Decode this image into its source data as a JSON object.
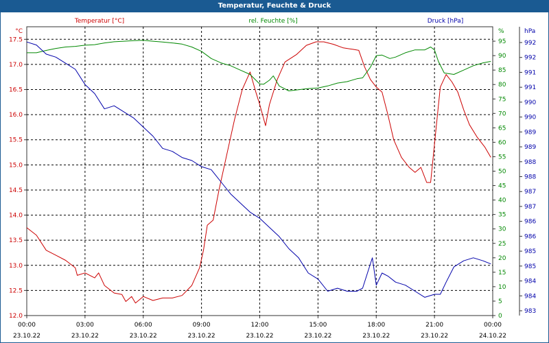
{
  "chart_data": {
    "type": "line",
    "title": "Temperatur, Feuchte & Druck",
    "x_ticks": [
      {
        "time": "00:00",
        "date": "23.10.22"
      },
      {
        "time": "03:00",
        "date": "23.10.22"
      },
      {
        "time": "06:00",
        "date": "23.10.22"
      },
      {
        "time": "09:00",
        "date": "23.10.22"
      },
      {
        "time": "12:00",
        "date": "23.10.22"
      },
      {
        "time": "15:00",
        "date": "23.10.22"
      },
      {
        "time": "18:00",
        "date": "23.10.22"
      },
      {
        "time": "21:00",
        "date": "23.10.22"
      },
      {
        "time": "00:00",
        "date": "24.10.22"
      }
    ],
    "x_range_hours": [
      0,
      24
    ],
    "axes": {
      "temperature": {
        "label": "Temperatur [°C]",
        "unit": "°C",
        "color": "#cc0000",
        "range": [
          12.0,
          17.75
        ],
        "ticks": [
          "12.0",
          "12.5",
          "13.0",
          "13.5",
          "14.0",
          "14.5",
          "15.0",
          "15.5",
          "16.0",
          "16.5",
          "17.0",
          "17.5"
        ]
      },
      "humidity": {
        "label": "rel. Feuchte [%]",
        "unit": "%",
        "color": "#008800",
        "range": [
          0,
          100
        ],
        "ticks": [
          "0",
          "5",
          "10",
          "15",
          "20",
          "25",
          "30",
          "35",
          "40",
          "45",
          "50",
          "55",
          "60",
          "65",
          "70",
          "75",
          "80",
          "85",
          "90",
          "95"
        ]
      },
      "pressure": {
        "label": "Druck [hPa]",
        "unit": "hPa",
        "color": "#0000aa",
        "range": [
          983.0,
          992.5
        ],
        "ticks": [
          "983",
          "984",
          "984",
          "985",
          "985",
          "986",
          "986",
          "987",
          "987",
          "988",
          "988",
          "989",
          "989",
          "990",
          "990",
          "991",
          "991",
          "992",
          "992"
        ]
      }
    },
    "series": [
      {
        "name": "Temperatur",
        "axis": "temperature",
        "color": "#cc0000",
        "points": [
          [
            0,
            13.75
          ],
          [
            0.5,
            13.6
          ],
          [
            1,
            13.3
          ],
          [
            1.5,
            13.2
          ],
          [
            2,
            13.1
          ],
          [
            2.5,
            12.95
          ],
          [
            2.6,
            12.8
          ],
          [
            3,
            12.85
          ],
          [
            3.5,
            12.75
          ],
          [
            3.7,
            12.85
          ],
          [
            4,
            12.6
          ],
          [
            4.5,
            12.45
          ],
          [
            4.9,
            12.42
          ],
          [
            5.1,
            12.28
          ],
          [
            5.4,
            12.38
          ],
          [
            5.6,
            12.25
          ],
          [
            6,
            12.38
          ],
          [
            6.5,
            12.3
          ],
          [
            7,
            12.35
          ],
          [
            7.5,
            12.35
          ],
          [
            8,
            12.4
          ],
          [
            8.5,
            12.6
          ],
          [
            8.9,
            12.95
          ],
          [
            9.1,
            13.3
          ],
          [
            9.3,
            13.8
          ],
          [
            9.6,
            13.9
          ],
          [
            9.9,
            14.5
          ],
          [
            10.3,
            15.2
          ],
          [
            10.7,
            15.9
          ],
          [
            11.1,
            16.5
          ],
          [
            11.5,
            16.85
          ],
          [
            11.8,
            16.45
          ],
          [
            12,
            16.2
          ],
          [
            12.3,
            15.78
          ],
          [
            12.5,
            16.2
          ],
          [
            12.9,
            16.7
          ],
          [
            13.3,
            17.05
          ],
          [
            13.9,
            17.2
          ],
          [
            14.4,
            17.38
          ],
          [
            14.9,
            17.45
          ],
          [
            15.3,
            17.45
          ],
          [
            15.8,
            17.4
          ],
          [
            16.3,
            17.33
          ],
          [
            16.8,
            17.3
          ],
          [
            17.1,
            17.28
          ],
          [
            17.4,
            16.95
          ],
          [
            17.7,
            16.7
          ],
          [
            18,
            16.55
          ],
          [
            18.3,
            16.45
          ],
          [
            18.6,
            16.0
          ],
          [
            18.9,
            15.5
          ],
          [
            19.3,
            15.15
          ],
          [
            19.7,
            14.95
          ],
          [
            20,
            14.85
          ],
          [
            20.3,
            14.95
          ],
          [
            20.6,
            14.65
          ],
          [
            20.8,
            14.65
          ],
          [
            21.1,
            15.8
          ],
          [
            21.3,
            16.55
          ],
          [
            21.6,
            16.8
          ],
          [
            21.9,
            16.65
          ],
          [
            22.2,
            16.45
          ],
          [
            22.5,
            16.1
          ],
          [
            22.8,
            15.8
          ],
          [
            23.2,
            15.55
          ],
          [
            23.6,
            15.35
          ],
          [
            23.9,
            15.15
          ]
        ]
      },
      {
        "name": "rel. Feuchte",
        "axis": "humidity",
        "color": "#008800",
        "points": [
          [
            0,
            91
          ],
          [
            0.5,
            91
          ],
          [
            1,
            91.8
          ],
          [
            1.5,
            92.5
          ],
          [
            2,
            93
          ],
          [
            2.5,
            93.2
          ],
          [
            3,
            93.6
          ],
          [
            3.5,
            93.8
          ],
          [
            4,
            94.4
          ],
          [
            4.5,
            94.8
          ],
          [
            5,
            95
          ],
          [
            5.5,
            95.2
          ],
          [
            6,
            95.3
          ],
          [
            6.5,
            95
          ],
          [
            7,
            94.7
          ],
          [
            7.5,
            94.4
          ],
          [
            8,
            94
          ],
          [
            8.5,
            93
          ],
          [
            9,
            91.5
          ],
          [
            9.5,
            89
          ],
          [
            10,
            87.5
          ],
          [
            10.5,
            86.5
          ],
          [
            11,
            85
          ],
          [
            11.5,
            83.5
          ],
          [
            11.8,
            81.5
          ],
          [
            12,
            80.2
          ],
          [
            12.2,
            80.1
          ],
          [
            12.5,
            81.5
          ],
          [
            12.7,
            83
          ],
          [
            13,
            79.5
          ],
          [
            13.5,
            77.8
          ],
          [
            14,
            78.2
          ],
          [
            14.5,
            78.6
          ],
          [
            15,
            78.8
          ],
          [
            15.5,
            79.5
          ],
          [
            16,
            80.5
          ],
          [
            16.5,
            81
          ],
          [
            17,
            82
          ],
          [
            17.3,
            82.3
          ],
          [
            17.7,
            86
          ],
          [
            18,
            90
          ],
          [
            18.3,
            90.2
          ],
          [
            18.7,
            89
          ],
          [
            19,
            89.5
          ],
          [
            19.5,
            91
          ],
          [
            20,
            92
          ],
          [
            20.5,
            92
          ],
          [
            20.8,
            93
          ],
          [
            21,
            92
          ],
          [
            21.2,
            88
          ],
          [
            21.5,
            84
          ],
          [
            22,
            83.5
          ],
          [
            22.5,
            85
          ],
          [
            23,
            86.5
          ],
          [
            23.5,
            87.5
          ],
          [
            23.9,
            88
          ]
        ]
      },
      {
        "name": "Druck",
        "axis": "pressure",
        "color": "#0000aa",
        "points": [
          [
            0,
            992.0
          ],
          [
            0.5,
            991.9
          ],
          [
            1,
            991.6
          ],
          [
            1.5,
            991.5
          ],
          [
            2,
            991.3
          ],
          [
            2.5,
            991.1
          ],
          [
            3,
            990.6
          ],
          [
            3.5,
            990.3
          ],
          [
            4,
            989.8
          ],
          [
            4.5,
            989.9
          ],
          [
            5,
            989.7
          ],
          [
            5.5,
            989.5
          ],
          [
            6,
            989.2
          ],
          [
            6.5,
            988.9
          ],
          [
            7,
            988.5
          ],
          [
            7.5,
            988.4
          ],
          [
            8,
            988.2
          ],
          [
            8.5,
            988.1
          ],
          [
            9,
            987.9
          ],
          [
            9.5,
            987.8
          ],
          [
            10,
            987.4
          ],
          [
            10.5,
            987.0
          ],
          [
            11,
            986.7
          ],
          [
            11.5,
            986.4
          ],
          [
            12,
            986.2
          ],
          [
            12.5,
            985.9
          ],
          [
            13,
            985.6
          ],
          [
            13.5,
            985.2
          ],
          [
            14,
            984.9
          ],
          [
            14.5,
            984.4
          ],
          [
            15,
            984.2
          ],
          [
            15.5,
            983.8
          ],
          [
            16,
            983.9
          ],
          [
            16.5,
            983.8
          ],
          [
            17,
            983.8
          ],
          [
            17.3,
            983.9
          ],
          [
            17.6,
            984.5
          ],
          [
            17.8,
            984.9
          ],
          [
            18,
            984.0
          ],
          [
            18.3,
            984.4
          ],
          [
            18.6,
            984.3
          ],
          [
            19,
            984.1
          ],
          [
            19.5,
            984.0
          ],
          [
            20,
            983.8
          ],
          [
            20.5,
            983.6
          ],
          [
            21,
            983.7
          ],
          [
            21.3,
            983.7
          ],
          [
            21.6,
            984.1
          ],
          [
            22,
            984.6
          ],
          [
            22.5,
            984.8
          ],
          [
            23,
            984.9
          ],
          [
            23.5,
            984.8
          ],
          [
            23.9,
            984.7
          ]
        ]
      }
    ]
  }
}
